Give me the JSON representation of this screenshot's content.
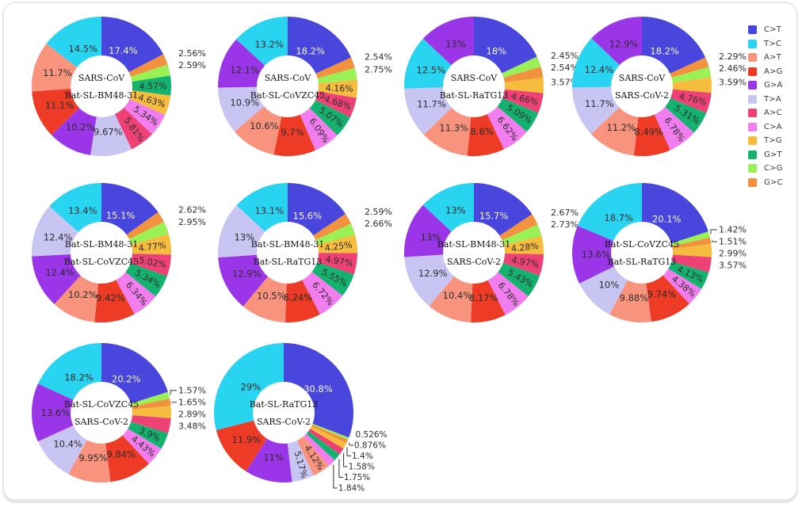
{
  "legend": {
    "position": "right",
    "items": [
      {
        "label": "C>T",
        "color": "#4946dd"
      },
      {
        "label": "T>C",
        "color": "#29d4f0"
      },
      {
        "label": "A>T",
        "color": "#f8937e"
      },
      {
        "label": "A>G",
        "color": "#ee3b25"
      },
      {
        "label": "G>A",
        "color": "#9b36e8"
      },
      {
        "label": "T>A",
        "color": "#c9c5f3"
      },
      {
        "label": "A>C",
        "color": "#ee4277"
      },
      {
        "label": "C>A",
        "color": "#f27def"
      },
      {
        "label": "T>G",
        "color": "#f6bc3d"
      },
      {
        "label": "G>T",
        "color": "#14b26e"
      },
      {
        "label": "C>G",
        "color": "#9af156"
      },
      {
        "label": "G>C",
        "color": "#f2923e"
      }
    ]
  },
  "chart_data": [
    {
      "type": "donut",
      "title": [
        "SARS-CoV",
        "Bat-SL-BM48-31"
      ],
      "slices": [
        {
          "mutation": "C>T",
          "value": 17.4,
          "label": "17.4%"
        },
        {
          "mutation": "G>C",
          "value": 2.56,
          "label": "2.56%"
        },
        {
          "mutation": "C>G",
          "value": 2.59,
          "label": "2.59%"
        },
        {
          "mutation": "G>T",
          "value": 4.57,
          "label": "4.57%"
        },
        {
          "mutation": "T>G",
          "value": 4.63,
          "label": "4.63%"
        },
        {
          "mutation": "C>A",
          "value": 5.34,
          "label": "5.34%"
        },
        {
          "mutation": "A>C",
          "value": 5.81,
          "label": "5.81%"
        },
        {
          "mutation": "T>A",
          "value": 9.67,
          "label": "9.67%"
        },
        {
          "mutation": "G>A",
          "value": 10.2,
          "label": "10.2%"
        },
        {
          "mutation": "A>G",
          "value": 11.1,
          "label": "11.1%"
        },
        {
          "mutation": "A>T",
          "value": 11.7,
          "label": "11.7%"
        },
        {
          "mutation": "T>C",
          "value": 14.5,
          "label": "14.5%"
        }
      ]
    },
    {
      "type": "donut",
      "title": [
        "SARS-CoV",
        "Bat-SL-CoVZC45"
      ],
      "slices": [
        {
          "mutation": "C>T",
          "value": 18.2,
          "label": "18.2%"
        },
        {
          "mutation": "G>C",
          "value": 2.54,
          "label": "2.54%"
        },
        {
          "mutation": "C>G",
          "value": 2.75,
          "label": "2.75%"
        },
        {
          "mutation": "T>G",
          "value": 4.16,
          "label": "4.16%"
        },
        {
          "mutation": "A>C",
          "value": 4.68,
          "label": "4.68%"
        },
        {
          "mutation": "G>T",
          "value": 5.07,
          "label": "5.07%"
        },
        {
          "mutation": "C>A",
          "value": 6.09,
          "label": "6.09%"
        },
        {
          "mutation": "A>G",
          "value": 9.7,
          "label": "9.7%"
        },
        {
          "mutation": "A>T",
          "value": 10.6,
          "label": "10.6%"
        },
        {
          "mutation": "T>A",
          "value": 10.9,
          "label": "10.9%"
        },
        {
          "mutation": "G>A",
          "value": 12.1,
          "label": "12.1%"
        },
        {
          "mutation": "T>C",
          "value": 13.2,
          "label": "13.2%"
        }
      ]
    },
    {
      "type": "donut",
      "title": [
        "SARS-CoV",
        "Bat-SL-RaTG13"
      ],
      "slices": [
        {
          "mutation": "C>T",
          "value": 18.0,
          "label": "18%"
        },
        {
          "mutation": "C>G",
          "value": 2.45,
          "label": "2.45%"
        },
        {
          "mutation": "G>C",
          "value": 2.54,
          "label": "2.54%"
        },
        {
          "mutation": "T>G",
          "value": 3.57,
          "label": "3.57%"
        },
        {
          "mutation": "A>C",
          "value": 4.66,
          "label": "4.66%"
        },
        {
          "mutation": "G>T",
          "value": 5.09,
          "label": "5.09%"
        },
        {
          "mutation": "C>A",
          "value": 6.62,
          "label": "6.62%"
        },
        {
          "mutation": "A>G",
          "value": 8.6,
          "label": "8.6%"
        },
        {
          "mutation": "A>T",
          "value": 11.3,
          "label": "11.3%"
        },
        {
          "mutation": "T>A",
          "value": 11.7,
          "label": "11.7%"
        },
        {
          "mutation": "T>C",
          "value": 12.5,
          "label": "12.5%"
        },
        {
          "mutation": "G>A",
          "value": 13.0,
          "label": "13%"
        }
      ]
    },
    {
      "type": "donut",
      "title": [
        "SARS-CoV",
        "SARS-CoV-2"
      ],
      "slices": [
        {
          "mutation": "C>T",
          "value": 18.2,
          "label": "18.2%"
        },
        {
          "mutation": "G>C",
          "value": 2.29,
          "label": "2.29%"
        },
        {
          "mutation": "C>G",
          "value": 2.46,
          "label": "2.46%"
        },
        {
          "mutation": "T>G",
          "value": 3.59,
          "label": "3.59%"
        },
        {
          "mutation": "A>C",
          "value": 4.76,
          "label": "4.76%"
        },
        {
          "mutation": "G>T",
          "value": 5.31,
          "label": "5.31%"
        },
        {
          "mutation": "C>A",
          "value": 6.78,
          "label": "6.78%"
        },
        {
          "mutation": "A>G",
          "value": 8.49,
          "label": "8.49%"
        },
        {
          "mutation": "A>T",
          "value": 11.2,
          "label": "11.2%"
        },
        {
          "mutation": "T>A",
          "value": 11.7,
          "label": "11.7%"
        },
        {
          "mutation": "T>C",
          "value": 12.4,
          "label": "12.4%"
        },
        {
          "mutation": "G>A",
          "value": 12.9,
          "label": "12.9%"
        }
      ]
    },
    {
      "type": "donut",
      "title": [
        "Bat-SL-BM48-31",
        "Bat-SL-CoVZC45"
      ],
      "slices": [
        {
          "mutation": "C>T",
          "value": 15.1,
          "label": "15.1%"
        },
        {
          "mutation": "G>C",
          "value": 2.62,
          "label": "2.62%"
        },
        {
          "mutation": "C>G",
          "value": 2.95,
          "label": "2.95%"
        },
        {
          "mutation": "T>G",
          "value": 4.77,
          "label": "4.77%"
        },
        {
          "mutation": "A>C",
          "value": 5.02,
          "label": "5.02%"
        },
        {
          "mutation": "G>T",
          "value": 5.34,
          "label": "5.34%"
        },
        {
          "mutation": "C>A",
          "value": 6.34,
          "label": "6.34%"
        },
        {
          "mutation": "A>G",
          "value": 9.42,
          "label": "9.42%"
        },
        {
          "mutation": "A>T",
          "value": 10.2,
          "label": "10.2%"
        },
        {
          "mutation": "G>A",
          "value": 12.4,
          "label": "12.4%"
        },
        {
          "mutation": "T>A",
          "value": 12.4,
          "label": "12.4%"
        },
        {
          "mutation": "T>C",
          "value": 13.4,
          "label": "13.4%"
        }
      ]
    },
    {
      "type": "donut",
      "title": [
        "Bat-SL-BM48-31",
        "Bat-SL-RaTG13"
      ],
      "slices": [
        {
          "mutation": "C>T",
          "value": 15.6,
          "label": "15.6%"
        },
        {
          "mutation": "G>C",
          "value": 2.59,
          "label": "2.59%"
        },
        {
          "mutation": "C>G",
          "value": 2.66,
          "label": "2.66%"
        },
        {
          "mutation": "T>G",
          "value": 4.25,
          "label": "4.25%"
        },
        {
          "mutation": "A>C",
          "value": 4.97,
          "label": "4.97%"
        },
        {
          "mutation": "G>T",
          "value": 5.55,
          "label": "5.55%"
        },
        {
          "mutation": "C>A",
          "value": 6.72,
          "label": "6.72%"
        },
        {
          "mutation": "A>G",
          "value": 8.24,
          "label": "8.24%"
        },
        {
          "mutation": "A>T",
          "value": 10.5,
          "label": "10.5%"
        },
        {
          "mutation": "G>A",
          "value": 12.9,
          "label": "12.9%"
        },
        {
          "mutation": "T>A",
          "value": 13.0,
          "label": "13%"
        },
        {
          "mutation": "T>C",
          "value": 13.1,
          "label": "13.1%"
        }
      ]
    },
    {
      "type": "donut",
      "title": [
        "Bat-SL-BM48-31",
        "SARS-CoV-2"
      ],
      "slices": [
        {
          "mutation": "C>T",
          "value": 15.7,
          "label": "15.7%"
        },
        {
          "mutation": "G>C",
          "value": 2.67,
          "label": "2.67%"
        },
        {
          "mutation": "C>G",
          "value": 2.73,
          "label": "2.73%"
        },
        {
          "mutation": "T>G",
          "value": 4.28,
          "label": "4.28%"
        },
        {
          "mutation": "A>C",
          "value": 4.97,
          "label": "4.97%"
        },
        {
          "mutation": "G>T",
          "value": 5.43,
          "label": "5.43%"
        },
        {
          "mutation": "C>A",
          "value": 6.78,
          "label": "6.78%"
        },
        {
          "mutation": "A>G",
          "value": 8.17,
          "label": "8.17%"
        },
        {
          "mutation": "A>T",
          "value": 10.4,
          "label": "10.4%"
        },
        {
          "mutation": "T>A",
          "value": 12.9,
          "label": "12.9%"
        },
        {
          "mutation": "G>A",
          "value": 13.0,
          "label": "13%"
        },
        {
          "mutation": "T>C",
          "value": 13.0,
          "label": "13%"
        }
      ]
    },
    {
      "type": "donut",
      "title": [
        "Bat-SL-CoVZC45",
        "Bat-SL-RaTG13"
      ],
      "slices": [
        {
          "mutation": "C>T",
          "value": 20.1,
          "label": "20.1%"
        },
        {
          "mutation": "C>G",
          "value": 1.42,
          "label": "1.42%"
        },
        {
          "mutation": "G>C",
          "value": 1.51,
          "label": "1.51%"
        },
        {
          "mutation": "T>G",
          "value": 2.99,
          "label": "2.99%"
        },
        {
          "mutation": "A>C",
          "value": 3.57,
          "label": "3.57%"
        },
        {
          "mutation": "G>T",
          "value": 4.13,
          "label": "4.13%"
        },
        {
          "mutation": "C>A",
          "value": 4.38,
          "label": "4.38%"
        },
        {
          "mutation": "A>G",
          "value": 9.74,
          "label": "9.74%"
        },
        {
          "mutation": "A>T",
          "value": 9.88,
          "label": "9.88%"
        },
        {
          "mutation": "T>A",
          "value": 10.0,
          "label": "10%"
        },
        {
          "mutation": "G>A",
          "value": 13.6,
          "label": "13.6%"
        },
        {
          "mutation": "T>C",
          "value": 18.7,
          "label": "18.7%"
        }
      ]
    },
    {
      "type": "donut",
      "title": [
        "Bat-SL-CoVZC45",
        "SARS-CoV-2"
      ],
      "slices": [
        {
          "mutation": "C>T",
          "value": 20.2,
          "label": "20.2%"
        },
        {
          "mutation": "C>G",
          "value": 1.57,
          "label": "1.57%"
        },
        {
          "mutation": "G>C",
          "value": 1.65,
          "label": "1.65%"
        },
        {
          "mutation": "T>G",
          "value": 2.89,
          "label": "2.89%"
        },
        {
          "mutation": "A>C",
          "value": 3.48,
          "label": "3.48%"
        },
        {
          "mutation": "G>T",
          "value": 3.9,
          "label": "3.9%"
        },
        {
          "mutation": "C>A",
          "value": 4.43,
          "label": "4.43%"
        },
        {
          "mutation": "A>G",
          "value": 9.84,
          "label": "9.84%"
        },
        {
          "mutation": "A>T",
          "value": 9.95,
          "label": "9.95%"
        },
        {
          "mutation": "T>A",
          "value": 10.4,
          "label": "10.4%"
        },
        {
          "mutation": "G>A",
          "value": 13.6,
          "label": "13.6%"
        },
        {
          "mutation": "T>C",
          "value": 18.2,
          "label": "18.2%"
        }
      ]
    },
    {
      "type": "donut",
      "title": [
        "Bat-SL-RaTG13",
        "SARS-CoV-2"
      ],
      "slices": [
        {
          "mutation": "C>T",
          "value": 30.8,
          "label": "30.8%"
        },
        {
          "mutation": "C>G",
          "value": 0.526,
          "label": "0.526%"
        },
        {
          "mutation": "G>C",
          "value": 0.876,
          "label": "0.876%"
        },
        {
          "mutation": "T>G",
          "value": 1.4,
          "label": "1.4%"
        },
        {
          "mutation": "A>C",
          "value": 1.58,
          "label": "1.58%"
        },
        {
          "mutation": "G>T",
          "value": 1.75,
          "label": "1.75%"
        },
        {
          "mutation": "C>A",
          "value": 1.84,
          "label": "1.84%"
        },
        {
          "mutation": "A>T",
          "value": 4.12,
          "label": "4.12%"
        },
        {
          "mutation": "T>A",
          "value": 5.17,
          "label": "5.17%"
        },
        {
          "mutation": "G>A",
          "value": 11.0,
          "label": "11%"
        },
        {
          "mutation": "A>G",
          "value": 11.9,
          "label": "11.9%"
        },
        {
          "mutation": "T>C",
          "value": 29.0,
          "label": "29%"
        }
      ]
    }
  ]
}
